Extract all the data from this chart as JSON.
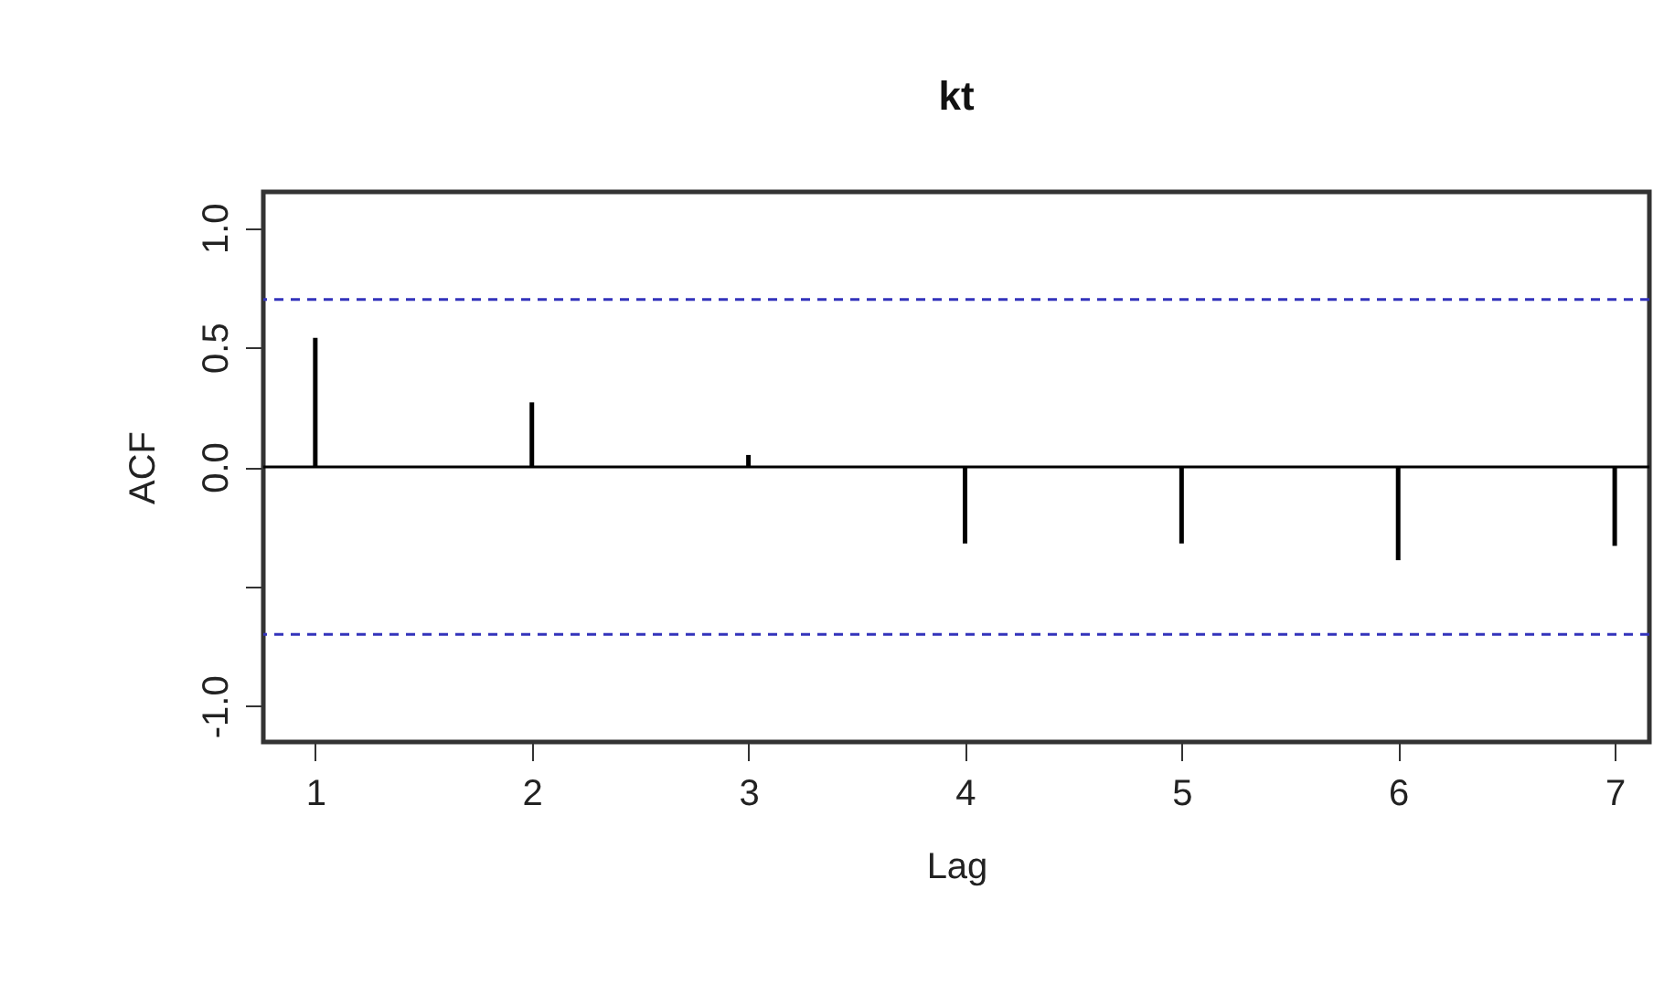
{
  "chart_data": {
    "type": "bar",
    "title": "kt",
    "xlabel": "Lag",
    "ylabel": "ACF",
    "x": [
      1,
      2,
      3,
      4,
      5,
      6,
      7
    ],
    "series": [
      {
        "color": "#000000",
        "values": [
          0.54,
          0.27,
          0.05,
          -0.32,
          -0.32,
          -0.39,
          -0.33
        ]
      }
    ],
    "xlim": [
      0.76,
      7.16
    ],
    "xticks": [
      1,
      2,
      3,
      4,
      5,
      6,
      7
    ],
    "ylim": [
      -1.15,
      1.15
    ],
    "yticks": [
      {
        "value": -1,
        "label": "-1.0"
      },
      {
        "value": -0.5,
        "label": null
      },
      {
        "value": 0,
        "label": "0.0"
      },
      {
        "value": 0.5,
        "label": "0.5"
      },
      {
        "value": 1,
        "label": "1.0"
      }
    ],
    "ref_lines": [
      {
        "axis": "y",
        "value": 0,
        "color": "#000000",
        "line_style": "solid"
      },
      {
        "axis": "y",
        "value": 0.7,
        "color": "#3333bb",
        "line_style": "dashed"
      },
      {
        "axis": "y",
        "value": -0.7,
        "color": "#3333bb",
        "line_style": "dashed"
      }
    ],
    "grid": false
  }
}
